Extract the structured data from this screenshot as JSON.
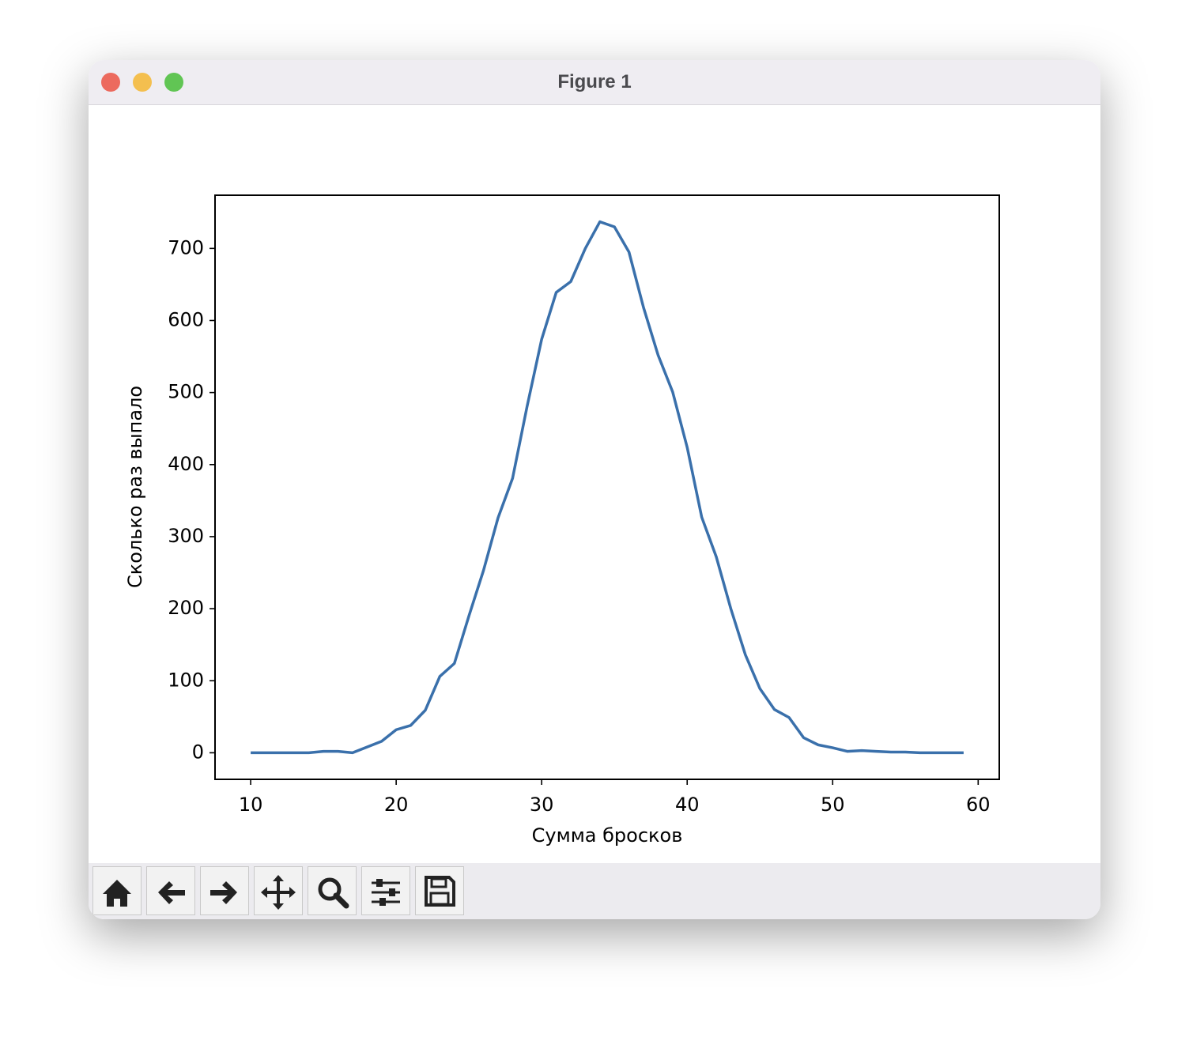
{
  "window_title": "Figure 1",
  "chart_data": {
    "type": "line",
    "xlabel": "Сумма бросков",
    "ylabel": "Сколько раз выпало",
    "x": [
      10,
      11,
      12,
      13,
      14,
      15,
      16,
      17,
      18,
      19,
      20,
      21,
      22,
      23,
      24,
      25,
      26,
      27,
      28,
      29,
      30,
      31,
      32,
      33,
      34,
      35,
      36,
      37,
      38,
      39,
      40,
      41,
      42,
      43,
      44,
      45,
      46,
      47,
      48,
      49,
      50,
      51,
      52,
      53,
      54,
      55,
      56,
      57,
      58,
      59
    ],
    "values": [
      0,
      0,
      0,
      0,
      0,
      2,
      2,
      0,
      8,
      16,
      32,
      38,
      59,
      106,
      124,
      190,
      253,
      326,
      381,
      481,
      574,
      639,
      654,
      700,
      737,
      730,
      695,
      618,
      552,
      501,
      424,
      327,
      272,
      200,
      136,
      89,
      60,
      49,
      21,
      11,
      7,
      2,
      3,
      2,
      1,
      1,
      0,
      0,
      0,
      0
    ],
    "color": "#3a70ab",
    "xlim": [
      7.55,
      61.45
    ],
    "ylim": [
      -36.85,
      773.85
    ],
    "xticks": [
      10,
      20,
      30,
      40,
      50,
      60
    ],
    "yticks": [
      0,
      100,
      200,
      300,
      400,
      500,
      600,
      700
    ],
    "grid": false
  }
}
